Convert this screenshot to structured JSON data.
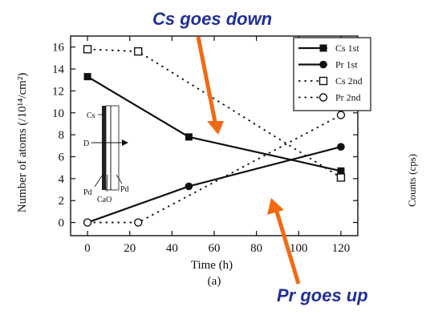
{
  "chart_data": {
    "type": "line",
    "xlabel": "Time (h)",
    "ylabel": "Number of atoms (/10¹⁴/cm²)",
    "xlim": [
      -8,
      128
    ],
    "ylim": [
      -1.2,
      17
    ],
    "x_ticks": [
      0,
      20,
      40,
      60,
      80,
      100,
      120
    ],
    "y_ticks": [
      0,
      2,
      4,
      6,
      8,
      10,
      12,
      14,
      16
    ],
    "grid": false,
    "legend_position": "top-right",
    "sublabel": "(a)",
    "series": [
      {
        "name": "Cs 1st",
        "style": "solid",
        "marker": "filled-square",
        "x": [
          0,
          48,
          120
        ],
        "y": [
          13.3,
          7.8,
          4.7
        ]
      },
      {
        "name": "Pr 1st",
        "style": "solid",
        "marker": "filled-circle",
        "x": [
          0,
          48,
          120
        ],
        "y": [
          0,
          3.3,
          6.9
        ]
      },
      {
        "name": "Cs 2nd",
        "style": "dotted",
        "marker": "open-square",
        "x": [
          0,
          24,
          120
        ],
        "y": [
          15.8,
          15.6,
          4.1
        ]
      },
      {
        "name": "Pr 2nd",
        "style": "dotted",
        "marker": "open-circle",
        "x": [
          0,
          24,
          120
        ],
        "y": [
          0,
          0,
          9.8
        ]
      }
    ]
  },
  "annotations": {
    "cs": "Cs goes down",
    "pr": "Pr goes up",
    "accent_color": "#f26a12",
    "text_color": "#1f2f9a"
  },
  "inset": {
    "cs": "Cs",
    "d": "D",
    "pd_left": "Pd",
    "pd_right": "Pd",
    "cao": "CaO"
  },
  "right_cut_label": "Counts (cps)"
}
